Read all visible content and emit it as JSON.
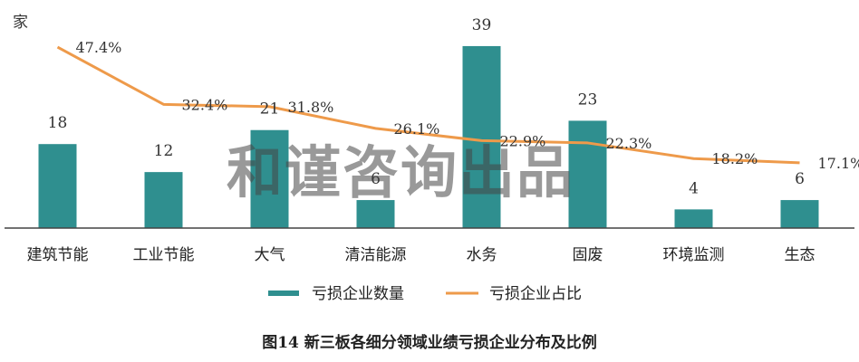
{
  "chart_data": {
    "type": "bar",
    "ylabel": "家",
    "categories": [
      "建筑节能",
      "工业节能",
      "大气",
      "清洁能源",
      "水务",
      "固废",
      "环境监测",
      "生态"
    ],
    "series": [
      {
        "name": "亏损企业数量",
        "type": "bar",
        "values": [
          18,
          12,
          21,
          6,
          39,
          23,
          4,
          6
        ],
        "color": "#2f8f8f"
      },
      {
        "name": "亏损企业占比",
        "type": "line",
        "values": [
          47.4,
          32.4,
          31.8,
          26.1,
          22.9,
          22.3,
          18.2,
          17.1
        ],
        "color": "#ee9a4a"
      }
    ],
    "bar_labels": [
      "18",
      "12",
      "21",
      "6",
      "39",
      "23",
      "4",
      "6"
    ],
    "line_labels": [
      "47.4%",
      "32.4%",
      "31.8%",
      "26.1%",
      "22.9%",
      "22.3%",
      "18.2%",
      "17.1%"
    ],
    "legend_placement": "bottom",
    "grid": false,
    "bar_ylim": [
      0,
      45
    ],
    "line_ylim": [
      0,
      55
    ]
  },
  "caption": "图14 新三板各细分领域业绩亏损企业分布及比例",
  "watermark": "和谨咨询出品"
}
